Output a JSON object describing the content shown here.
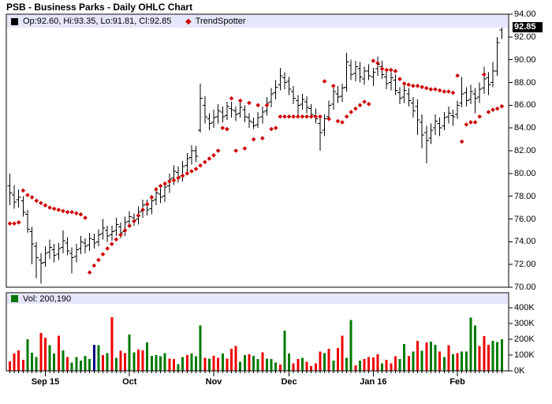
{
  "title": "PSB - Business Parks - Daily OHLC Chart",
  "price_panel": {
    "legend_marker": "■",
    "ohlc_text": "Op:92.60, Hi:93.35, Lo:91.81, Cl:92.85",
    "trend_marker": "◆",
    "trend_label": "TrendSpotter",
    "current_price_tag": "92.85"
  },
  "volume_panel": {
    "legend_marker": "■",
    "legend_text": "Vol: 200,190"
  },
  "colors": {
    "bar": "#000000",
    "trend": "#cc0000",
    "volume_up": "#007a00",
    "volume_down": "#ee0000",
    "volume_neutral": "#000080",
    "legend_bg": "#e6e6fa",
    "price_tag_bg": "#000000",
    "price_tag_text": "#ffffff"
  },
  "chart_data": {
    "type": "ohlc",
    "title": "PSB - Business Parks - Daily OHLC Chart",
    "legend_last_bar": {
      "open": 92.6,
      "high": 93.35,
      "low": 91.81,
      "close": 92.85
    },
    "last_volume": 200190,
    "price_axis": {
      "min": 70,
      "max": 94,
      "ticks": [
        {
          "value": 94,
          "label": "94.00"
        },
        {
          "value": 92,
          "label": "92.00"
        },
        {
          "value": 90,
          "label": "90.00"
        },
        {
          "value": 88,
          "label": "88.00"
        },
        {
          "value": 86,
          "label": "86.00"
        },
        {
          "value": 84,
          "label": "84.00"
        },
        {
          "value": 82,
          "label": "82.00"
        },
        {
          "value": 80,
          "label": "80.00"
        },
        {
          "value": 78,
          "label": "78.00"
        },
        {
          "value": 76,
          "label": "76.00"
        },
        {
          "value": 74,
          "label": "74.00"
        },
        {
          "value": 72,
          "label": "72.00"
        },
        {
          "value": 70,
          "label": "70.00"
        }
      ]
    },
    "volume_axis": {
      "min": 0,
      "max": 400,
      "ticks": [
        {
          "value": 400,
          "label": "400K"
        },
        {
          "value": 300,
          "label": "300K"
        },
        {
          "value": 200,
          "label": "200K"
        },
        {
          "value": 100,
          "label": "100K"
        },
        {
          "value": 0,
          "label": "0K"
        }
      ]
    },
    "months": [
      {
        "label": "Sep 15",
        "index": 8
      },
      {
        "label": "Oct",
        "index": 27
      },
      {
        "label": "Nov",
        "index": 46
      },
      {
        "label": "Dec",
        "index": 63
      },
      {
        "label": "Jan 16",
        "index": 82
      },
      {
        "label": "Feb",
        "index": 101
      }
    ],
    "ohlc": [
      [
        78.9,
        80.0,
        77.2,
        78.3
      ],
      [
        78.1,
        79.0,
        76.9,
        77.5
      ],
      [
        77.7,
        78.6,
        77.0,
        77.9
      ],
      [
        77.6,
        78.0,
        76.2,
        76.6
      ],
      [
        76.4,
        76.8,
        74.8,
        75.1
      ],
      [
        74.9,
        75.3,
        72.0,
        73.8
      ],
      [
        73.6,
        74.0,
        70.8,
        72.6
      ],
      [
        72.4,
        73.0,
        70.3,
        72.1
      ],
      [
        72.2,
        73.6,
        71.8,
        73.0
      ],
      [
        73.1,
        74.2,
        72.5,
        73.5
      ],
      [
        73.3,
        73.8,
        72.2,
        72.8
      ],
      [
        72.9,
        73.9,
        72.4,
        73.4
      ],
      [
        73.5,
        75.0,
        73.0,
        74.1
      ],
      [
        73.9,
        74.4,
        72.8,
        73.2
      ],
      [
        73.0,
        73.5,
        71.2,
        72.6
      ],
      [
        72.7,
        73.8,
        72.2,
        73.3
      ],
      [
        73.4,
        74.5,
        72.9,
        74.0
      ],
      [
        73.9,
        74.3,
        73.0,
        73.6
      ],
      [
        73.7,
        74.8,
        73.2,
        74.3
      ],
      [
        74.2,
        74.7,
        73.4,
        73.9
      ],
      [
        74.0,
        75.1,
        73.6,
        74.6
      ],
      [
        74.7,
        76.0,
        74.2,
        75.2
      ],
      [
        75.0,
        75.4,
        74.0,
        74.5
      ],
      [
        74.6,
        75.4,
        74.1,
        74.9
      ],
      [
        75.0,
        76.1,
        74.5,
        75.5
      ],
      [
        75.3,
        75.7,
        74.3,
        74.8
      ],
      [
        74.9,
        76.2,
        74.5,
        75.7
      ],
      [
        75.8,
        76.7,
        75.2,
        76.2
      ],
      [
        76.1,
        76.5,
        75.4,
        75.9
      ],
      [
        76.0,
        77.1,
        75.5,
        76.6
      ],
      [
        76.7,
        77.7,
        76.1,
        77.2
      ],
      [
        77.3,
        77.7,
        76.3,
        76.8
      ],
      [
        76.9,
        78.1,
        76.4,
        77.6
      ],
      [
        77.7,
        78.8,
        77.2,
        78.3
      ],
      [
        78.2,
        78.7,
        77.4,
        77.9
      ],
      [
        78.0,
        79.3,
        77.5,
        78.8
      ],
      [
        78.9,
        80.0,
        78.3,
        79.5
      ],
      [
        79.6,
        80.7,
        79.0,
        80.2
      ],
      [
        80.1,
        80.6,
        79.2,
        79.7
      ],
      [
        79.8,
        81.1,
        79.3,
        80.6
      ],
      [
        80.7,
        81.8,
        80.1,
        81.3
      ],
      [
        81.4,
        82.5,
        80.8,
        82.0
      ],
      [
        82.0,
        82.4,
        81.0,
        81.5
      ],
      [
        83.8,
        87.9,
        83.6,
        86.6
      ],
      [
        86.0,
        86.8,
        84.4,
        85.0
      ],
      [
        84.8,
        85.3,
        83.8,
        84.4
      ],
      [
        84.5,
        85.6,
        84.0,
        84.9
      ],
      [
        85.0,
        86.1,
        84.4,
        85.5
      ],
      [
        85.4,
        85.9,
        84.5,
        85.0
      ],
      [
        85.1,
        86.3,
        84.7,
        85.9
      ],
      [
        85.7,
        86.3,
        84.9,
        85.6
      ],
      [
        85.5,
        85.9,
        84.6,
        85.2
      ],
      [
        85.3,
        86.4,
        84.9,
        85.8
      ],
      [
        85.6,
        86.0,
        84.5,
        85.0
      ],
      [
        84.9,
        85.3,
        84.0,
        84.6
      ],
      [
        84.5,
        84.9,
        83.9,
        84.2
      ],
      [
        84.3,
        85.4,
        84.0,
        84.9
      ],
      [
        85.0,
        85.9,
        84.4,
        85.4
      ],
      [
        85.5,
        86.7,
        85.1,
        86.2
      ],
      [
        86.3,
        87.5,
        85.8,
        87.0
      ],
      [
        87.1,
        88.2,
        86.5,
        87.6
      ],
      [
        87.8,
        89.3,
        87.3,
        88.6
      ],
      [
        88.4,
        88.9,
        87.4,
        88.0
      ],
      [
        88.1,
        88.5,
        86.9,
        87.4
      ],
      [
        87.2,
        87.7,
        86.1,
        86.6
      ],
      [
        86.4,
        86.9,
        85.0,
        86.0
      ],
      [
        86.1,
        87.0,
        85.6,
        86.5
      ],
      [
        86.3,
        86.8,
        85.3,
        85.8
      ],
      [
        85.7,
        86.1,
        84.8,
        85.2
      ],
      [
        85.1,
        85.7,
        84.4,
        84.8
      ],
      [
        84.4,
        85.0,
        82.0,
        83.6
      ],
      [
        83.8,
        85.2,
        83.3,
        84.8
      ],
      [
        85.0,
        86.4,
        84.6,
        86.0
      ],
      [
        86.1,
        87.6,
        85.6,
        87.2
      ],
      [
        87.0,
        87.7,
        86.2,
        86.7
      ],
      [
        86.8,
        87.9,
        86.3,
        87.5
      ],
      [
        87.6,
        90.6,
        87.2,
        89.8
      ],
      [
        89.5,
        90.0,
        88.2,
        88.7
      ],
      [
        88.8,
        89.9,
        88.1,
        89.4
      ],
      [
        89.2,
        89.8,
        88.0,
        88.5
      ],
      [
        88.3,
        89.4,
        87.8,
        89.0
      ],
      [
        89.0,
        89.6,
        88.2,
        88.6
      ],
      [
        88.5,
        89.3,
        87.7,
        88.9
      ],
      [
        89.2,
        90.3,
        88.6,
        89.6
      ],
      [
        89.4,
        89.9,
        88.3,
        88.7
      ],
      [
        88.5,
        89.0,
        87.4,
        87.9
      ],
      [
        88.0,
        88.9,
        87.3,
        88.4
      ],
      [
        88.2,
        88.7,
        86.9,
        87.3
      ],
      [
        87.1,
        87.6,
        86.1,
        86.6
      ],
      [
        86.7,
        87.8,
        86.2,
        87.3
      ],
      [
        87.0,
        87.5,
        85.9,
        86.4
      ],
      [
        86.2,
        86.7,
        84.9,
        85.5
      ],
      [
        85.9,
        86.5,
        83.4,
        84.7
      ],
      [
        84.5,
        85.2,
        82.2,
        83.4
      ],
      [
        83.6,
        84.2,
        80.9,
        82.9
      ],
      [
        83.1,
        84.4,
        82.6,
        83.8
      ],
      [
        84.0,
        85.2,
        83.4,
        84.6
      ],
      [
        84.4,
        84.9,
        83.3,
        84.0
      ],
      [
        84.2,
        85.4,
        83.8,
        84.9
      ],
      [
        85.0,
        85.9,
        84.4,
        85.3
      ],
      [
        85.1,
        85.6,
        84.2,
        85.0
      ],
      [
        85.2,
        86.4,
        84.8,
        86.0
      ],
      [
        86.2,
        88.5,
        85.8,
        87.0
      ],
      [
        87.1,
        87.6,
        85.9,
        86.4
      ],
      [
        86.5,
        87.8,
        86.1,
        87.2
      ],
      [
        87.0,
        87.5,
        85.3,
        86.6
      ],
      [
        86.7,
        88.0,
        86.2,
        87.4
      ],
      [
        87.5,
        89.4,
        87.0,
        88.3
      ],
      [
        88.4,
        88.9,
        86.9,
        87.8
      ],
      [
        88.0,
        89.8,
        87.6,
        89.0
      ],
      [
        89.0,
        92.0,
        88.6,
        91.5
      ],
      [
        92.6,
        93.35,
        91.81,
        92.85
      ]
    ],
    "trend": [
      75.6,
      75.6,
      75.7,
      78.5,
      78.1,
      77.9,
      77.6,
      77.4,
      77.2,
      77.0,
      76.9,
      76.8,
      76.7,
      76.6,
      76.6,
      76.5,
      76.4,
      76.1,
      71.3,
      71.9,
      72.4,
      72.9,
      73.4,
      73.8,
      74.2,
      74.6,
      75.0,
      75.4,
      75.8,
      76.3,
      76.8,
      77.3,
      77.9,
      78.6,
      78.9,
      79.1,
      79.3,
      79.4,
      79.6,
      79.8,
      80.0,
      80.2,
      80.4,
      80.7,
      81.0,
      81.3,
      81.6,
      82.0,
      84.0,
      83.9,
      86.6,
      82.0,
      86.4,
      82.2,
      86.2,
      83.0,
      86.0,
      83.1,
      86.0,
      83.9,
      84.0,
      85.0,
      85.0,
      85.0,
      85.0,
      85.0,
      85.0,
      85.0,
      85.0,
      85.0,
      85.0,
      88.1,
      84.8,
      87.7,
      84.6,
      84.5,
      85.0,
      85.4,
      85.7,
      86.0,
      86.3,
      86.1,
      89.9,
      89.7,
      89.2,
      89.1,
      89.1,
      89.0,
      88.3,
      87.9,
      87.8,
      87.7,
      87.7,
      87.6,
      87.5,
      87.4,
      87.4,
      87.3,
      87.2,
      87.2,
      87.1,
      88.6,
      82.8,
      84.3,
      84.5,
      84.5,
      85.0,
      88.7,
      85.4,
      85.6,
      85.7,
      85.9
    ],
    "volume_k": [
      60,
      110,
      130,
      70,
      200,
      115,
      87,
      240,
      210,
      162,
      110,
      222,
      131,
      87,
      52,
      87,
      64,
      96,
      75,
      165,
      162,
      100,
      113,
      340,
      82,
      127,
      113,
      230,
      117,
      134,
      131,
      180,
      96,
      100,
      92,
      113,
      78,
      75,
      43,
      87,
      101,
      110,
      92,
      287,
      82,
      78,
      96,
      82,
      110,
      78,
      139,
      157,
      57,
      100,
      104,
      96,
      75,
      117,
      78,
      75,
      52,
      40,
      255,
      110,
      47,
      75,
      82,
      57,
      30,
      47,
      122,
      113,
      139,
      64,
      144,
      222,
      82,
      322,
      35,
      64,
      75,
      87,
      84,
      104,
      47,
      70,
      47,
      92,
      75,
      169,
      96,
      122,
      191,
      127,
      180,
      186,
      165,
      122,
      87,
      162,
      104,
      113,
      122,
      122,
      337,
      287,
      157,
      219,
      165,
      191,
      183,
      200
    ],
    "volume_colors": [
      "r",
      "r",
      "r",
      "r",
      "g",
      "g",
      "g",
      "r",
      "r",
      "g",
      "g",
      "r",
      "g",
      "r",
      "g",
      "g",
      "g",
      "g",
      "g",
      "n",
      "g",
      "r",
      "g",
      "r",
      "g",
      "r",
      "r",
      "g",
      "g",
      "r",
      "r",
      "g",
      "g",
      "g",
      "g",
      "g",
      "r",
      "r",
      "g",
      "g",
      "r",
      "g",
      "g",
      "g",
      "r",
      "g",
      "r",
      "r",
      "g",
      "r",
      "r",
      "r",
      "g",
      "g",
      "r",
      "g",
      "g",
      "r",
      "g",
      "g",
      "g",
      "r",
      "g",
      "g",
      "r",
      "r",
      "g",
      "r",
      "r",
      "r",
      "r",
      "g",
      "r",
      "g",
      "r",
      "r",
      "g",
      "g",
      "r",
      "g",
      "r",
      "r",
      "r",
      "r",
      "g",
      "r",
      "r",
      "r",
      "g",
      "g",
      "r",
      "g",
      "r",
      "g",
      "r",
      "g",
      "g",
      "r",
      "g",
      "r",
      "g",
      "r",
      "g",
      "g",
      "g",
      "g",
      "r",
      "r",
      "r",
      "g",
      "g",
      "g"
    ]
  }
}
